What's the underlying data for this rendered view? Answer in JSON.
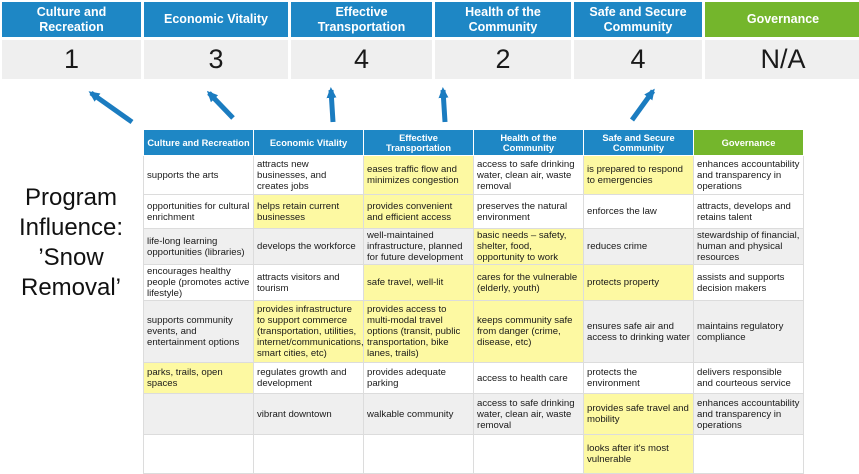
{
  "colors": {
    "header_blue": "#1E87C5",
    "header_green": "#74B62C",
    "score_band_gray": "#EFEFEF",
    "row_band_gray": "#EFEFEF",
    "highlight_yellow": "#FDF9A2",
    "arrow_blue": "#1B7CC0"
  },
  "top_summary": {
    "items": [
      {
        "label": "Culture and Recreation",
        "score": "1",
        "color": "#1E87C5"
      },
      {
        "label": "Economic Vitality",
        "score": "3",
        "color": "#1E87C5"
      },
      {
        "label": "Effective Transportation",
        "score": "4",
        "color": "#1E87C5"
      },
      {
        "label": "Health of the Community",
        "score": "2",
        "color": "#1E87C5"
      },
      {
        "label": "Safe and Secure Community",
        "score": "4",
        "color": "#1E87C5"
      },
      {
        "label": "Governance",
        "score": "N/A",
        "color": "#74B62C"
      }
    ]
  },
  "program_label": {
    "text": "Program Influence: ’Snow Removal’"
  },
  "table": {
    "columns": [
      {
        "label": "Culture and Recreation",
        "color": "#1E87C5"
      },
      {
        "label": "Economic Vitality",
        "color": "#1E87C5"
      },
      {
        "label": "Effective Transportation",
        "color": "#1E87C5"
      },
      {
        "label": "Health of the Community",
        "color": "#1E87C5"
      },
      {
        "label": "Safe and Secure Community",
        "color": "#1E87C5"
      },
      {
        "label": "Governance",
        "color": "#74B62C"
      }
    ],
    "rows": [
      {
        "cells": [
          {
            "text": "supports the arts",
            "bg": "plain"
          },
          {
            "text": "attracts new businesses, and creates jobs",
            "bg": "plain"
          },
          {
            "text": "eases traffic flow and minimizes congestion",
            "bg": "yellow"
          },
          {
            "text": "access to safe drinking water, clean air, waste removal",
            "bg": "plain"
          },
          {
            "text": "is prepared to respond to emergencies",
            "bg": "yellow"
          },
          {
            "text": "enhances accountability and transparency in operations",
            "bg": "plain"
          }
        ]
      },
      {
        "cells": [
          {
            "text": "opportunities for cultural enrichment",
            "bg": "plain"
          },
          {
            "text": "helps retain current businesses",
            "bg": "yellow"
          },
          {
            "text": "provides convenient and efficient access",
            "bg": "yellow"
          },
          {
            "text": "preserves the natural environment",
            "bg": "plain"
          },
          {
            "text": "enforces the law",
            "bg": "plain"
          },
          {
            "text": "attracts, develops and retains talent",
            "bg": "plain"
          }
        ]
      },
      {
        "cells": [
          {
            "text": "life-long learning opportunities (libraries)",
            "bg": "band"
          },
          {
            "text": "develops the workforce",
            "bg": "band"
          },
          {
            "text": "well-maintained infrastructure, planned for future development",
            "bg": "band"
          },
          {
            "text": "basic needs – safety, shelter, food, opportunity to work",
            "bg": "yellow"
          },
          {
            "text": "reduces crime",
            "bg": "band"
          },
          {
            "text": "stewardship of financial, human and physical resources",
            "bg": "band"
          }
        ]
      },
      {
        "cells": [
          {
            "text": "encourages healthy people (promotes active lifestyle)",
            "bg": "plain"
          },
          {
            "text": "attracts visitors and tourism",
            "bg": "plain"
          },
          {
            "text": "safe travel, well-lit",
            "bg": "yellow"
          },
          {
            "text": "cares for the vulnerable (elderly, youth)",
            "bg": "yellow"
          },
          {
            "text": "protects property",
            "bg": "yellow"
          },
          {
            "text": "assists and supports decision makers",
            "bg": "plain"
          }
        ]
      },
      {
        "cells": [
          {
            "text": "supports community events, and entertainment options",
            "bg": "band"
          },
          {
            "text": "provides infrastructure to support commerce (transportation, utilities, internet/communications, smart cities, etc)",
            "bg": "yellow"
          },
          {
            "text": "provides access to multi-modal travel options (transit, public transportation, bike lanes, trails)",
            "bg": "yellow"
          },
          {
            "text": "keeps community safe from danger (crime, disease, etc)",
            "bg": "yellow"
          },
          {
            "text": "ensures safe air and access to drinking water",
            "bg": "band"
          },
          {
            "text": "maintains regulatory compliance",
            "bg": "band"
          }
        ]
      },
      {
        "cells": [
          {
            "text": "parks, trails, open spaces",
            "bg": "yellow"
          },
          {
            "text": "regulates growth and development",
            "bg": "plain"
          },
          {
            "text": "provides adequate parking",
            "bg": "plain"
          },
          {
            "text": "access to health care",
            "bg": "plain"
          },
          {
            "text": "protects the environment",
            "bg": "plain"
          },
          {
            "text": "delivers responsible and courteous service",
            "bg": "plain"
          }
        ]
      },
      {
        "cells": [
          {
            "text": "",
            "bg": "band"
          },
          {
            "text": "vibrant downtown",
            "bg": "band"
          },
          {
            "text": "walkable community",
            "bg": "band"
          },
          {
            "text": "access to safe drinking water, clean air, waste removal",
            "bg": "band"
          },
          {
            "text": "provides safe travel and mobility",
            "bg": "yellow"
          },
          {
            "text": "enhances accountability and transparency in operations",
            "bg": "band"
          }
        ]
      },
      {
        "cells": [
          {
            "text": "",
            "bg": "plain"
          },
          {
            "text": "",
            "bg": "plain"
          },
          {
            "text": "",
            "bg": "plain"
          },
          {
            "text": "",
            "bg": "plain"
          },
          {
            "text": "looks after it's most vulnerable",
            "bg": "yellow"
          },
          {
            "text": "",
            "bg": "plain"
          }
        ]
      }
    ]
  }
}
